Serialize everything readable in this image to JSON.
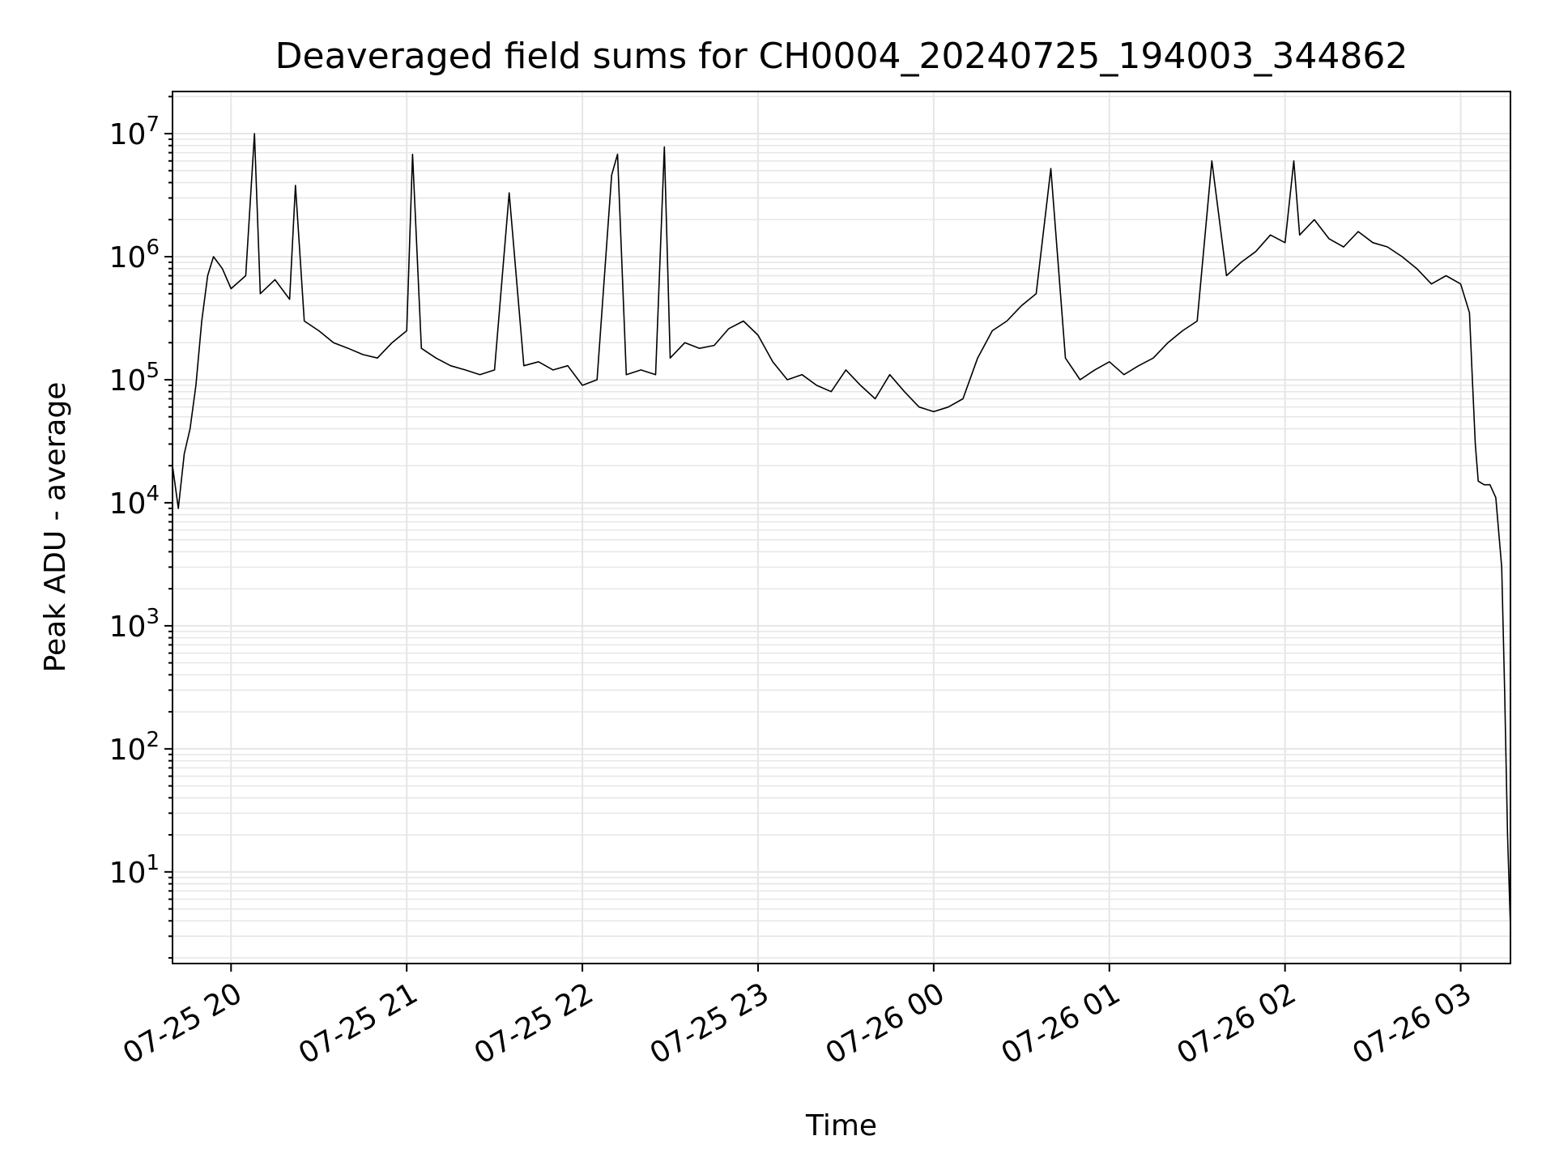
{
  "chart_data": {
    "type": "line",
    "title": "Deaveraged field sums for CH0004_20240725_194003_344862",
    "xlabel": "Time",
    "ylabel": "Peak ADU - average",
    "y_scale": "log",
    "grid": true,
    "xlim": [
      "2024-07-25 19:40",
      "2024-07-26 03:17"
    ],
    "ylim": [
      1.8,
      22000000
    ],
    "x_ticks": [
      {
        "t": "2024-07-25 20:00",
        "label": "07-25 20"
      },
      {
        "t": "2024-07-25 21:00",
        "label": "07-25 21"
      },
      {
        "t": "2024-07-25 22:00",
        "label": "07-25 22"
      },
      {
        "t": "2024-07-25 23:00",
        "label": "07-25 23"
      },
      {
        "t": "2024-07-26 00:00",
        "label": "07-26 00"
      },
      {
        "t": "2024-07-26 01:00",
        "label": "07-26 01"
      },
      {
        "t": "2024-07-26 02:00",
        "label": "07-26 02"
      },
      {
        "t": "2024-07-26 03:00",
        "label": "07-26 03"
      }
    ],
    "y_ticks": [
      {
        "value": 10,
        "base": "10",
        "exp": "1"
      },
      {
        "value": 100,
        "base": "10",
        "exp": "2"
      },
      {
        "value": 1000,
        "base": "10",
        "exp": "3"
      },
      {
        "value": 10000,
        "base": "10",
        "exp": "4"
      },
      {
        "value": 100000,
        "base": "10",
        "exp": "5"
      },
      {
        "value": 1000000,
        "base": "10",
        "exp": "6"
      },
      {
        "value": 10000000,
        "base": "10",
        "exp": "7"
      }
    ],
    "series": [
      {
        "color": "#000000",
        "points": [
          [
            "2024-07-25 19:40",
            20000
          ],
          [
            "2024-07-25 19:42",
            9000
          ],
          [
            "2024-07-25 19:44",
            25000
          ],
          [
            "2024-07-25 19:46",
            40000
          ],
          [
            "2024-07-25 19:48",
            90000
          ],
          [
            "2024-07-25 19:50",
            300000
          ],
          [
            "2024-07-25 19:52",
            700000
          ],
          [
            "2024-07-25 19:54",
            1000000
          ],
          [
            "2024-07-25 19:57",
            800000
          ],
          [
            "2024-07-25 20:00",
            550000
          ],
          [
            "2024-07-25 20:05",
            700000
          ],
          [
            "2024-07-25 20:08",
            10000000
          ],
          [
            "2024-07-25 20:10",
            500000
          ],
          [
            "2024-07-25 20:15",
            650000
          ],
          [
            "2024-07-25 20:20",
            450000
          ],
          [
            "2024-07-25 20:22",
            3800000
          ],
          [
            "2024-07-25 20:25",
            300000
          ],
          [
            "2024-07-25 20:30",
            250000
          ],
          [
            "2024-07-25 20:35",
            200000
          ],
          [
            "2024-07-25 20:40",
            180000
          ],
          [
            "2024-07-25 20:45",
            160000
          ],
          [
            "2024-07-25 20:50",
            150000
          ],
          [
            "2024-07-25 20:55",
            200000
          ],
          [
            "2024-07-25 21:00",
            250000
          ],
          [
            "2024-07-25 21:02",
            6800000
          ],
          [
            "2024-07-25 21:05",
            180000
          ],
          [
            "2024-07-25 21:10",
            150000
          ],
          [
            "2024-07-25 21:15",
            130000
          ],
          [
            "2024-07-25 21:20",
            120000
          ],
          [
            "2024-07-25 21:25",
            110000
          ],
          [
            "2024-07-25 21:30",
            120000
          ],
          [
            "2024-07-25 21:35",
            3300000
          ],
          [
            "2024-07-25 21:40",
            130000
          ],
          [
            "2024-07-25 21:45",
            140000
          ],
          [
            "2024-07-25 21:50",
            120000
          ],
          [
            "2024-07-25 21:55",
            130000
          ],
          [
            "2024-07-25 22:00",
            90000
          ],
          [
            "2024-07-25 22:05",
            100000
          ],
          [
            "2024-07-25 22:10",
            4600000
          ],
          [
            "2024-07-25 22:12",
            6800000
          ],
          [
            "2024-07-25 22:15",
            110000
          ],
          [
            "2024-07-25 22:20",
            120000
          ],
          [
            "2024-07-25 22:25",
            110000
          ],
          [
            "2024-07-25 22:28",
            7800000
          ],
          [
            "2024-07-25 22:30",
            150000
          ],
          [
            "2024-07-25 22:35",
            200000
          ],
          [
            "2024-07-25 22:40",
            180000
          ],
          [
            "2024-07-25 22:45",
            190000
          ],
          [
            "2024-07-25 22:50",
            260000
          ],
          [
            "2024-07-25 22:55",
            300000
          ],
          [
            "2024-07-25 23:00",
            230000
          ],
          [
            "2024-07-25 23:05",
            140000
          ],
          [
            "2024-07-25 23:10",
            100000
          ],
          [
            "2024-07-25 23:15",
            110000
          ],
          [
            "2024-07-25 23:20",
            90000
          ],
          [
            "2024-07-25 23:25",
            80000
          ],
          [
            "2024-07-25 23:30",
            120000
          ],
          [
            "2024-07-25 23:35",
            90000
          ],
          [
            "2024-07-25 23:40",
            70000
          ],
          [
            "2024-07-25 23:45",
            110000
          ],
          [
            "2024-07-25 23:50",
            80000
          ],
          [
            "2024-07-25 23:55",
            60000
          ],
          [
            "2024-07-26 00:00",
            55000
          ],
          [
            "2024-07-26 00:05",
            60000
          ],
          [
            "2024-07-26 00:10",
            70000
          ],
          [
            "2024-07-26 00:15",
            150000
          ],
          [
            "2024-07-26 00:20",
            250000
          ],
          [
            "2024-07-26 00:25",
            300000
          ],
          [
            "2024-07-26 00:30",
            400000
          ],
          [
            "2024-07-26 00:35",
            500000
          ],
          [
            "2024-07-26 00:40",
            5200000
          ],
          [
            "2024-07-26 00:45",
            150000
          ],
          [
            "2024-07-26 00:50",
            100000
          ],
          [
            "2024-07-26 00:55",
            120000
          ],
          [
            "2024-07-26 01:00",
            140000
          ],
          [
            "2024-07-26 01:05",
            110000
          ],
          [
            "2024-07-26 01:10",
            130000
          ],
          [
            "2024-07-26 01:15",
            150000
          ],
          [
            "2024-07-26 01:20",
            200000
          ],
          [
            "2024-07-26 01:25",
            250000
          ],
          [
            "2024-07-26 01:30",
            300000
          ],
          [
            "2024-07-26 01:35",
            6000000
          ],
          [
            "2024-07-26 01:40",
            700000
          ],
          [
            "2024-07-26 01:45",
            900000
          ],
          [
            "2024-07-26 01:50",
            1100000
          ],
          [
            "2024-07-26 01:55",
            1500000
          ],
          [
            "2024-07-26 02:00",
            1300000
          ],
          [
            "2024-07-26 02:03",
            6000000
          ],
          [
            "2024-07-26 02:05",
            1500000
          ],
          [
            "2024-07-26 02:10",
            2000000
          ],
          [
            "2024-07-26 02:15",
            1400000
          ],
          [
            "2024-07-26 02:20",
            1200000
          ],
          [
            "2024-07-26 02:25",
            1600000
          ],
          [
            "2024-07-26 02:30",
            1300000
          ],
          [
            "2024-07-26 02:35",
            1200000
          ],
          [
            "2024-07-26 02:40",
            1000000
          ],
          [
            "2024-07-26 02:45",
            800000
          ],
          [
            "2024-07-26 02:50",
            600000
          ],
          [
            "2024-07-26 02:55",
            700000
          ],
          [
            "2024-07-26 03:00",
            600000
          ],
          [
            "2024-07-26 03:03",
            350000
          ],
          [
            "2024-07-26 03:04",
            100000
          ],
          [
            "2024-07-26 03:05",
            30000
          ],
          [
            "2024-07-26 03:06",
            15000
          ],
          [
            "2024-07-26 03:08",
            14000
          ],
          [
            "2024-07-26 03:10",
            14000
          ],
          [
            "2024-07-26 03:12",
            11000
          ],
          [
            "2024-07-26 03:14",
            3000
          ],
          [
            "2024-07-26 03:15",
            300
          ],
          [
            "2024-07-26 03:16",
            20
          ],
          [
            "2024-07-26 03:17",
            3.5
          ]
        ]
      }
    ]
  }
}
